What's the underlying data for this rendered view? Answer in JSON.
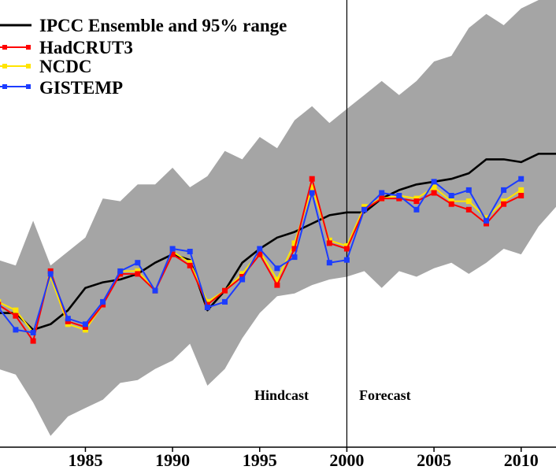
{
  "chart_data": {
    "type": "line",
    "title": "",
    "xlabel": "",
    "ylabel": "",
    "xlim": [
      1980.1,
      2012.0
    ],
    "ylim": [
      -0.6,
      1.0
    ],
    "x_ticks": [
      1985,
      1990,
      1995,
      2000,
      2005,
      2010
    ],
    "x_tick_labels": [
      "1985",
      "1990",
      "1995",
      "2000",
      "2005",
      "2010"
    ],
    "range_band": {
      "name": "95% range",
      "color": "#a5a5a5",
      "x": [
        1980,
        1981,
        1982,
        1983,
        1984,
        1985,
        1986,
        1987,
        1988,
        1989,
        1990,
        1991,
        1992,
        1993,
        1994,
        1995,
        1996,
        1997,
        1998,
        1999,
        2000,
        2001,
        2002,
        2003,
        2004,
        2005,
        2006,
        2007,
        2008,
        2009,
        2010,
        2011,
        2012
      ],
      "upper": [
        0.07,
        0.05,
        0.21,
        0.05,
        0.1,
        0.15,
        0.29,
        0.28,
        0.34,
        0.34,
        0.4,
        0.33,
        0.37,
        0.46,
        0.43,
        0.51,
        0.47,
        0.57,
        0.62,
        0.56,
        0.61,
        0.66,
        0.71,
        0.66,
        0.71,
        0.78,
        0.8,
        0.9,
        0.95,
        0.91,
        0.97,
        1.0,
        1.0
      ],
      "lower": [
        -0.32,
        -0.34,
        -0.44,
        -0.56,
        -0.49,
        -0.46,
        -0.43,
        -0.37,
        -0.36,
        -0.32,
        -0.29,
        -0.23,
        -0.38,
        -0.32,
        -0.21,
        -0.12,
        -0.06,
        -0.05,
        -0.02,
        0.0,
        0.01,
        0.03,
        -0.03,
        0.03,
        0.01,
        0.04,
        0.06,
        0.02,
        0.06,
        0.11,
        0.09,
        0.19,
        0.26
      ]
    },
    "x": [
      1980,
      1981,
      1982,
      1983,
      1984,
      1985,
      1986,
      1987,
      1988,
      1989,
      1990,
      1991,
      1992,
      1993,
      1994,
      1995,
      1996,
      1997,
      1998,
      1999,
      2000,
      2001,
      2002,
      2003,
      2004,
      2005,
      2006,
      2007,
      2008,
      2009,
      2010,
      2011,
      2012
    ],
    "series": [
      {
        "name": "IPCC Ensemble and 95% range",
        "color": "#000000",
        "markers": false,
        "x": [
          1980,
          1981,
          1982,
          1983,
          1984,
          1985,
          1986,
          1987,
          1988,
          1989,
          1990,
          1991,
          1992,
          1993,
          1994,
          1995,
          1996,
          1997,
          1998,
          1999,
          2000,
          2001,
          2002,
          2003,
          2004,
          2005,
          2006,
          2007,
          2008,
          2009,
          2010,
          2011,
          2012
        ],
        "values": [
          -0.12,
          -0.12,
          -0.18,
          -0.16,
          -0.11,
          -0.03,
          -0.01,
          0.0,
          0.02,
          0.06,
          0.09,
          0.07,
          -0.11,
          -0.04,
          0.06,
          0.11,
          0.15,
          0.17,
          0.2,
          0.23,
          0.24,
          0.24,
          0.29,
          0.32,
          0.34,
          0.35,
          0.36,
          0.38,
          0.43,
          0.43,
          0.42,
          0.45,
          0.45
        ]
      },
      {
        "name": "HadCRUT3",
        "color": "#ff0000",
        "markers": true,
        "x": [
          1980,
          1981,
          1982,
          1983,
          1984,
          1985,
          1986,
          1987,
          1988,
          1989,
          1990,
          1991,
          1992,
          1993,
          1994,
          1995,
          1996,
          1997,
          1998,
          1999,
          2000,
          2001,
          2002,
          2003,
          2004,
          2005,
          2006,
          2007,
          2008,
          2009,
          2010
        ],
        "values": [
          -0.09,
          -0.13,
          -0.22,
          0.03,
          -0.15,
          -0.17,
          -0.09,
          0.02,
          0.02,
          -0.04,
          0.09,
          0.05,
          -0.09,
          -0.04,
          0.01,
          0.09,
          -0.02,
          0.11,
          0.36,
          0.13,
          0.11,
          0.25,
          0.29,
          0.29,
          0.28,
          0.31,
          0.27,
          0.25,
          0.2,
          0.27,
          0.3
        ]
      },
      {
        "name": "NCDC",
        "color": "#ffe400",
        "markers": true,
        "x": [
          1980,
          1981,
          1982,
          1983,
          1984,
          1985,
          1986,
          1987,
          1988,
          1989,
          1990,
          1991,
          1992,
          1993,
          1994,
          1995,
          1996,
          1997,
          1998,
          1999,
          2000,
          2001,
          2002,
          2003,
          2004,
          2005,
          2006,
          2007,
          2008,
          2009,
          2010
        ],
        "values": [
          -0.08,
          -0.11,
          -0.19,
          0.01,
          -0.16,
          -0.18,
          -0.09,
          0.03,
          0.03,
          -0.04,
          0.1,
          0.06,
          -0.08,
          -0.04,
          0.02,
          0.1,
          0.0,
          0.13,
          0.33,
          0.14,
          0.12,
          0.26,
          0.29,
          0.3,
          0.29,
          0.33,
          0.28,
          0.28,
          0.22,
          0.28,
          0.32
        ]
      },
      {
        "name": "GISTEMP",
        "color": "#1c3cff",
        "markers": true,
        "x": [
          1980,
          1981,
          1982,
          1983,
          1984,
          1985,
          1986,
          1987,
          1988,
          1989,
          1990,
          1991,
          1992,
          1993,
          1994,
          1995,
          1996,
          1997,
          1998,
          1999,
          2000,
          2001,
          2002,
          2003,
          2004,
          2005,
          2006,
          2007,
          2008,
          2009,
          2010
        ],
        "values": [
          -0.1,
          -0.18,
          -0.19,
          0.02,
          -0.14,
          -0.16,
          -0.08,
          0.03,
          0.06,
          -0.04,
          0.11,
          0.1,
          -0.1,
          -0.08,
          0.0,
          0.11,
          0.04,
          0.08,
          0.31,
          0.06,
          0.07,
          0.25,
          0.31,
          0.3,
          0.25,
          0.35,
          0.3,
          0.32,
          0.21,
          0.32,
          0.36
        ]
      }
    ],
    "vertical_line": {
      "x": 2000.0
    },
    "annotations": [
      {
        "text": "Hindcast"
      },
      {
        "text": "Forecast"
      }
    ],
    "legend_placement": "top-left"
  }
}
